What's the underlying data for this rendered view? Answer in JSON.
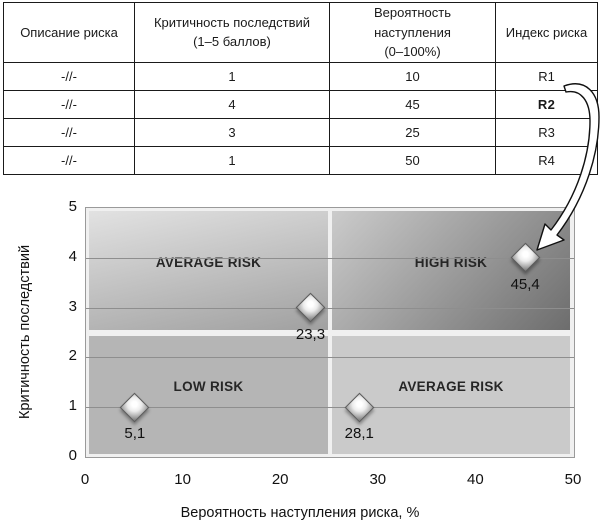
{
  "table": {
    "headers": [
      "Описание риска",
      "Критичность последствий\n(1–5 баллов)",
      "Вероятность наступления\n(0–100%)",
      "Индекс риска"
    ],
    "rows": [
      {
        "description": "-//-",
        "criticality": "1",
        "probability": "10",
        "index": "R1"
      },
      {
        "description": "-//-",
        "criticality": "4",
        "probability": "45",
        "index": "R2"
      },
      {
        "description": "-//-",
        "criticality": "3",
        "probability": "25",
        "index": "R3"
      },
      {
        "description": "-//-",
        "criticality": "1",
        "probability": "50",
        "index": "R4"
      }
    ],
    "highlighted_index": "R2"
  },
  "chart_data": {
    "type": "scatter",
    "xlabel": "Вероятность наступления риска, %",
    "ylabel": "Критичность последствий",
    "xlim": [
      0,
      50
    ],
    "ylim": [
      0,
      5
    ],
    "x_ticks": [
      0,
      10,
      20,
      30,
      40,
      50
    ],
    "y_ticks": [
      0,
      1,
      2,
      3,
      4,
      5
    ],
    "grid": "horizontal",
    "legend": "none",
    "points": [
      {
        "x": 5,
        "y": 1,
        "label": "5,1"
      },
      {
        "x": 23,
        "y": 3,
        "label": "23,3"
      },
      {
        "x": 28,
        "y": 1,
        "label": "28,1"
      },
      {
        "x": 45,
        "y": 4,
        "label": "45,4",
        "linked_index": "R2"
      }
    ],
    "quadrants": [
      {
        "position": "top-left",
        "label": "AVERAGE RISK"
      },
      {
        "position": "top-right",
        "label": "HIGH RISK"
      },
      {
        "position": "bottom-left",
        "label": "LOW RISK"
      },
      {
        "position": "bottom-right",
        "label": "AVERAGE RISK"
      }
    ],
    "quadrant_split": {
      "x": 25,
      "y": 2.5
    }
  },
  "colors": {
    "quad-tl-start": "#e2e2e2",
    "quad-tl-end": "#a0a0a0",
    "quad-tr-start": "#cbcbcb",
    "quad-tr-end": "#6d6d6d",
    "quad-bl": "#b5b5b5",
    "quad-br": "#cacaca",
    "gridline": "#8e8e8e",
    "table-border": "#1a1a1a",
    "text": "#1a1a1a"
  }
}
